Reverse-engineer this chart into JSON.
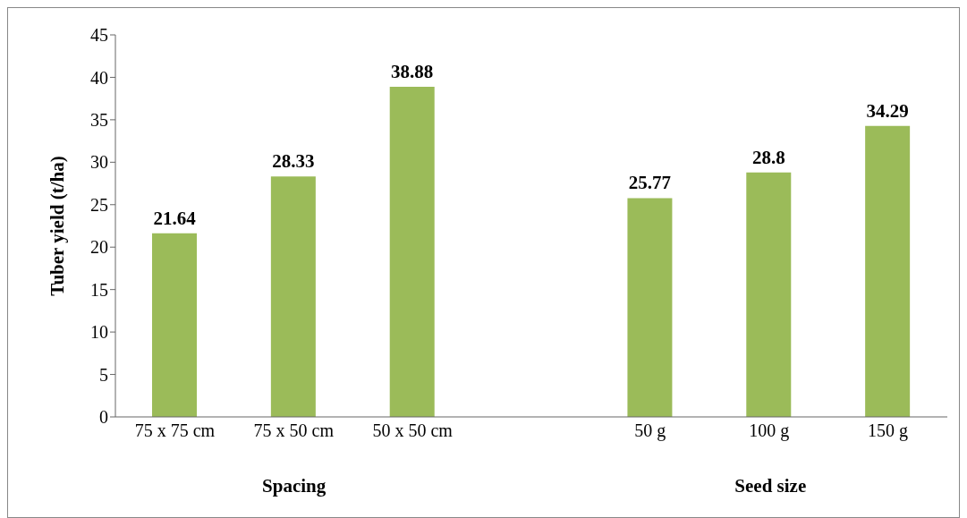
{
  "chart_data": {
    "type": "bar",
    "ylabel": "Tuber yield (t/ha)",
    "categories": [
      "75 x 75 cm",
      "75 x 50 cm",
      "50 x 50 cm",
      null,
      "50 g",
      "100 g",
      "150 g"
    ],
    "values": [
      21.64,
      28.33,
      38.88,
      null,
      25.77,
      28.8,
      34.29
    ],
    "color": "#9bbb59",
    "ylim": [
      0,
      45
    ],
    "yticks": [
      0,
      5,
      10,
      15,
      20,
      25,
      30,
      35,
      40,
      45
    ],
    "grid": false,
    "data_labels": true,
    "annotations": [
      "Spacing",
      "Seed size"
    ]
  }
}
